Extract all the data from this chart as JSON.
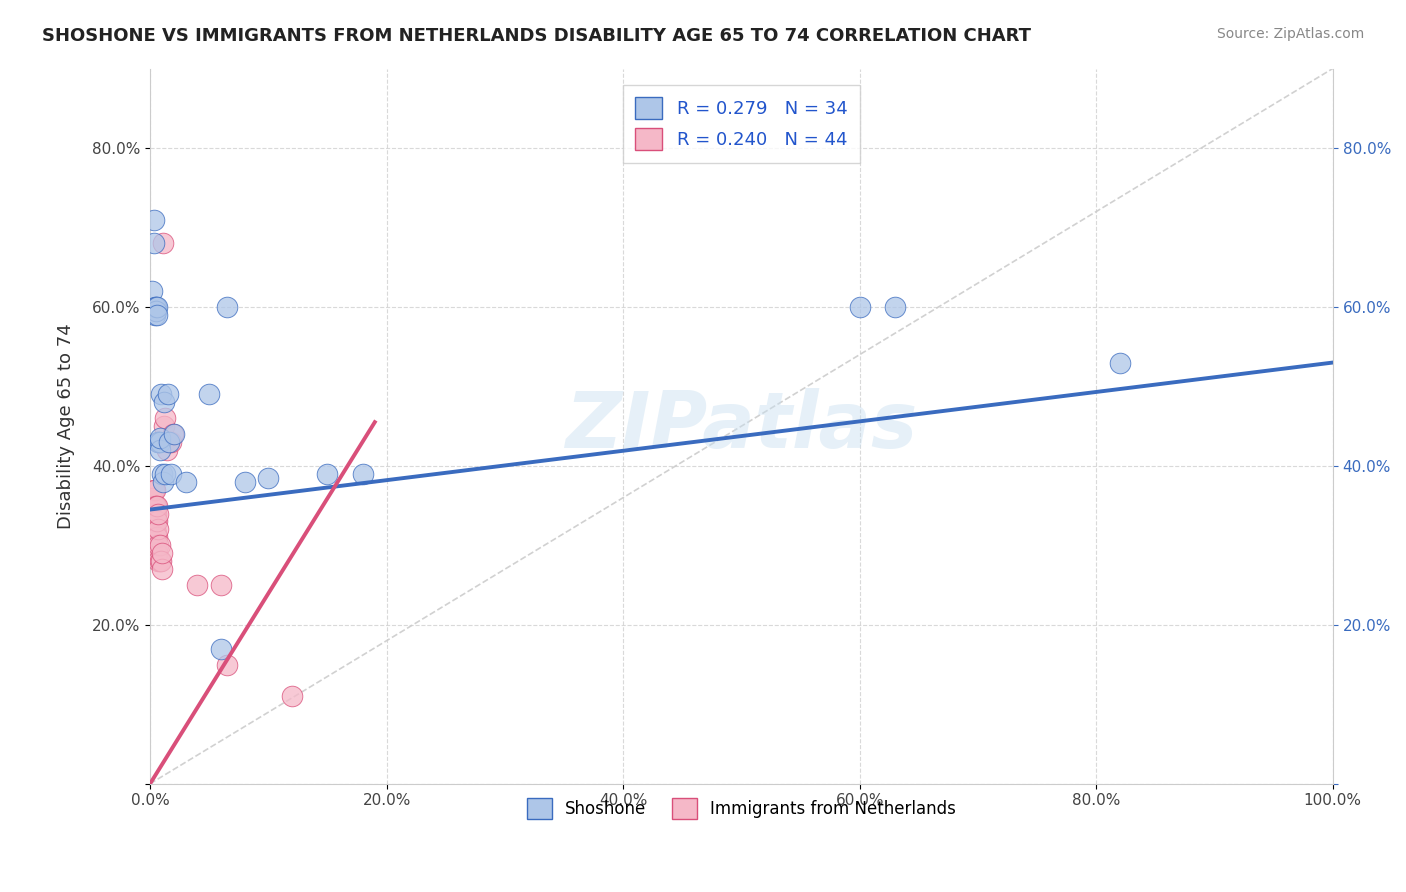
{
  "title": "SHOSHONE VS IMMIGRANTS FROM NETHERLANDS DISABILITY AGE 65 TO 74 CORRELATION CHART",
  "source": "Source: ZipAtlas.com",
  "ylabel": "Disability Age 65 to 74",
  "watermark": "ZIPatlas",
  "shoshone_R": 0.279,
  "shoshone_N": 34,
  "netherlands_R": 0.24,
  "netherlands_N": 44,
  "shoshone_color": "#aec6e8",
  "netherlands_color": "#f5b8c8",
  "shoshone_line_color": "#3a6bbf",
  "netherlands_line_color": "#d94f7a",
  "diagonal_color": "#cccccc",
  "shoshone_x": [
    0.002,
    0.003,
    0.003,
    0.004,
    0.004,
    0.005,
    0.005,
    0.006,
    0.006,
    0.007,
    0.007,
    0.008,
    0.008,
    0.008,
    0.009,
    0.01,
    0.011,
    0.012,
    0.013,
    0.015,
    0.016,
    0.018,
    0.02,
    0.03,
    0.05,
    0.06,
    0.065,
    0.08,
    0.1,
    0.15,
    0.18,
    0.6,
    0.63,
    0.82
  ],
  "shoshone_y": [
    0.62,
    0.71,
    0.68,
    0.6,
    0.59,
    0.6,
    0.595,
    0.6,
    0.59,
    0.43,
    0.43,
    0.43,
    0.42,
    0.435,
    0.49,
    0.39,
    0.38,
    0.48,
    0.39,
    0.49,
    0.43,
    0.39,
    0.44,
    0.38,
    0.49,
    0.17,
    0.6,
    0.38,
    0.385,
    0.39,
    0.39,
    0.6,
    0.6,
    0.53
  ],
  "netherlands_x": [
    0.001,
    0.001,
    0.001,
    0.002,
    0.002,
    0.002,
    0.003,
    0.003,
    0.003,
    0.003,
    0.004,
    0.004,
    0.004,
    0.004,
    0.004,
    0.005,
    0.005,
    0.005,
    0.005,
    0.005,
    0.006,
    0.006,
    0.006,
    0.006,
    0.007,
    0.007,
    0.007,
    0.007,
    0.008,
    0.008,
    0.009,
    0.01,
    0.01,
    0.011,
    0.012,
    0.013,
    0.014,
    0.016,
    0.018,
    0.019,
    0.04,
    0.06,
    0.065,
    0.12
  ],
  "netherlands_y": [
    0.32,
    0.33,
    0.35,
    0.33,
    0.34,
    0.36,
    0.31,
    0.33,
    0.35,
    0.37,
    0.31,
    0.32,
    0.34,
    0.35,
    0.37,
    0.3,
    0.315,
    0.33,
    0.34,
    0.35,
    0.29,
    0.31,
    0.33,
    0.35,
    0.28,
    0.3,
    0.32,
    0.34,
    0.28,
    0.3,
    0.28,
    0.27,
    0.29,
    0.68,
    0.45,
    0.46,
    0.42,
    0.43,
    0.43,
    0.44,
    0.25,
    0.25,
    0.15,
    0.11
  ],
  "shoshone_line_x": [
    0.0,
    1.0
  ],
  "shoshone_line_y": [
    0.345,
    0.53
  ],
  "netherlands_line_x": [
    0.0,
    0.19
  ],
  "netherlands_line_y": [
    0.0,
    0.455
  ],
  "xlim": [
    0.0,
    1.0
  ],
  "ylim": [
    0.0,
    0.9
  ],
  "xticks": [
    0.0,
    0.2,
    0.4,
    0.6,
    0.8,
    1.0
  ],
  "yticks": [
    0.0,
    0.2,
    0.4,
    0.6,
    0.8
  ],
  "xticklabels": [
    "0.0%",
    "20.0%",
    "40.0%",
    "60.0%",
    "80.0%",
    "100.0%"
  ],
  "yticklabels_left": [
    "",
    "20.0%",
    "40.0%",
    "60.0%",
    "80.0%"
  ],
  "yticklabels_right": [
    "",
    "20.0%",
    "40.0%",
    "60.0%",
    "80.0%"
  ],
  "background_color": "#ffffff",
  "grid_color": "#d0d0d0"
}
